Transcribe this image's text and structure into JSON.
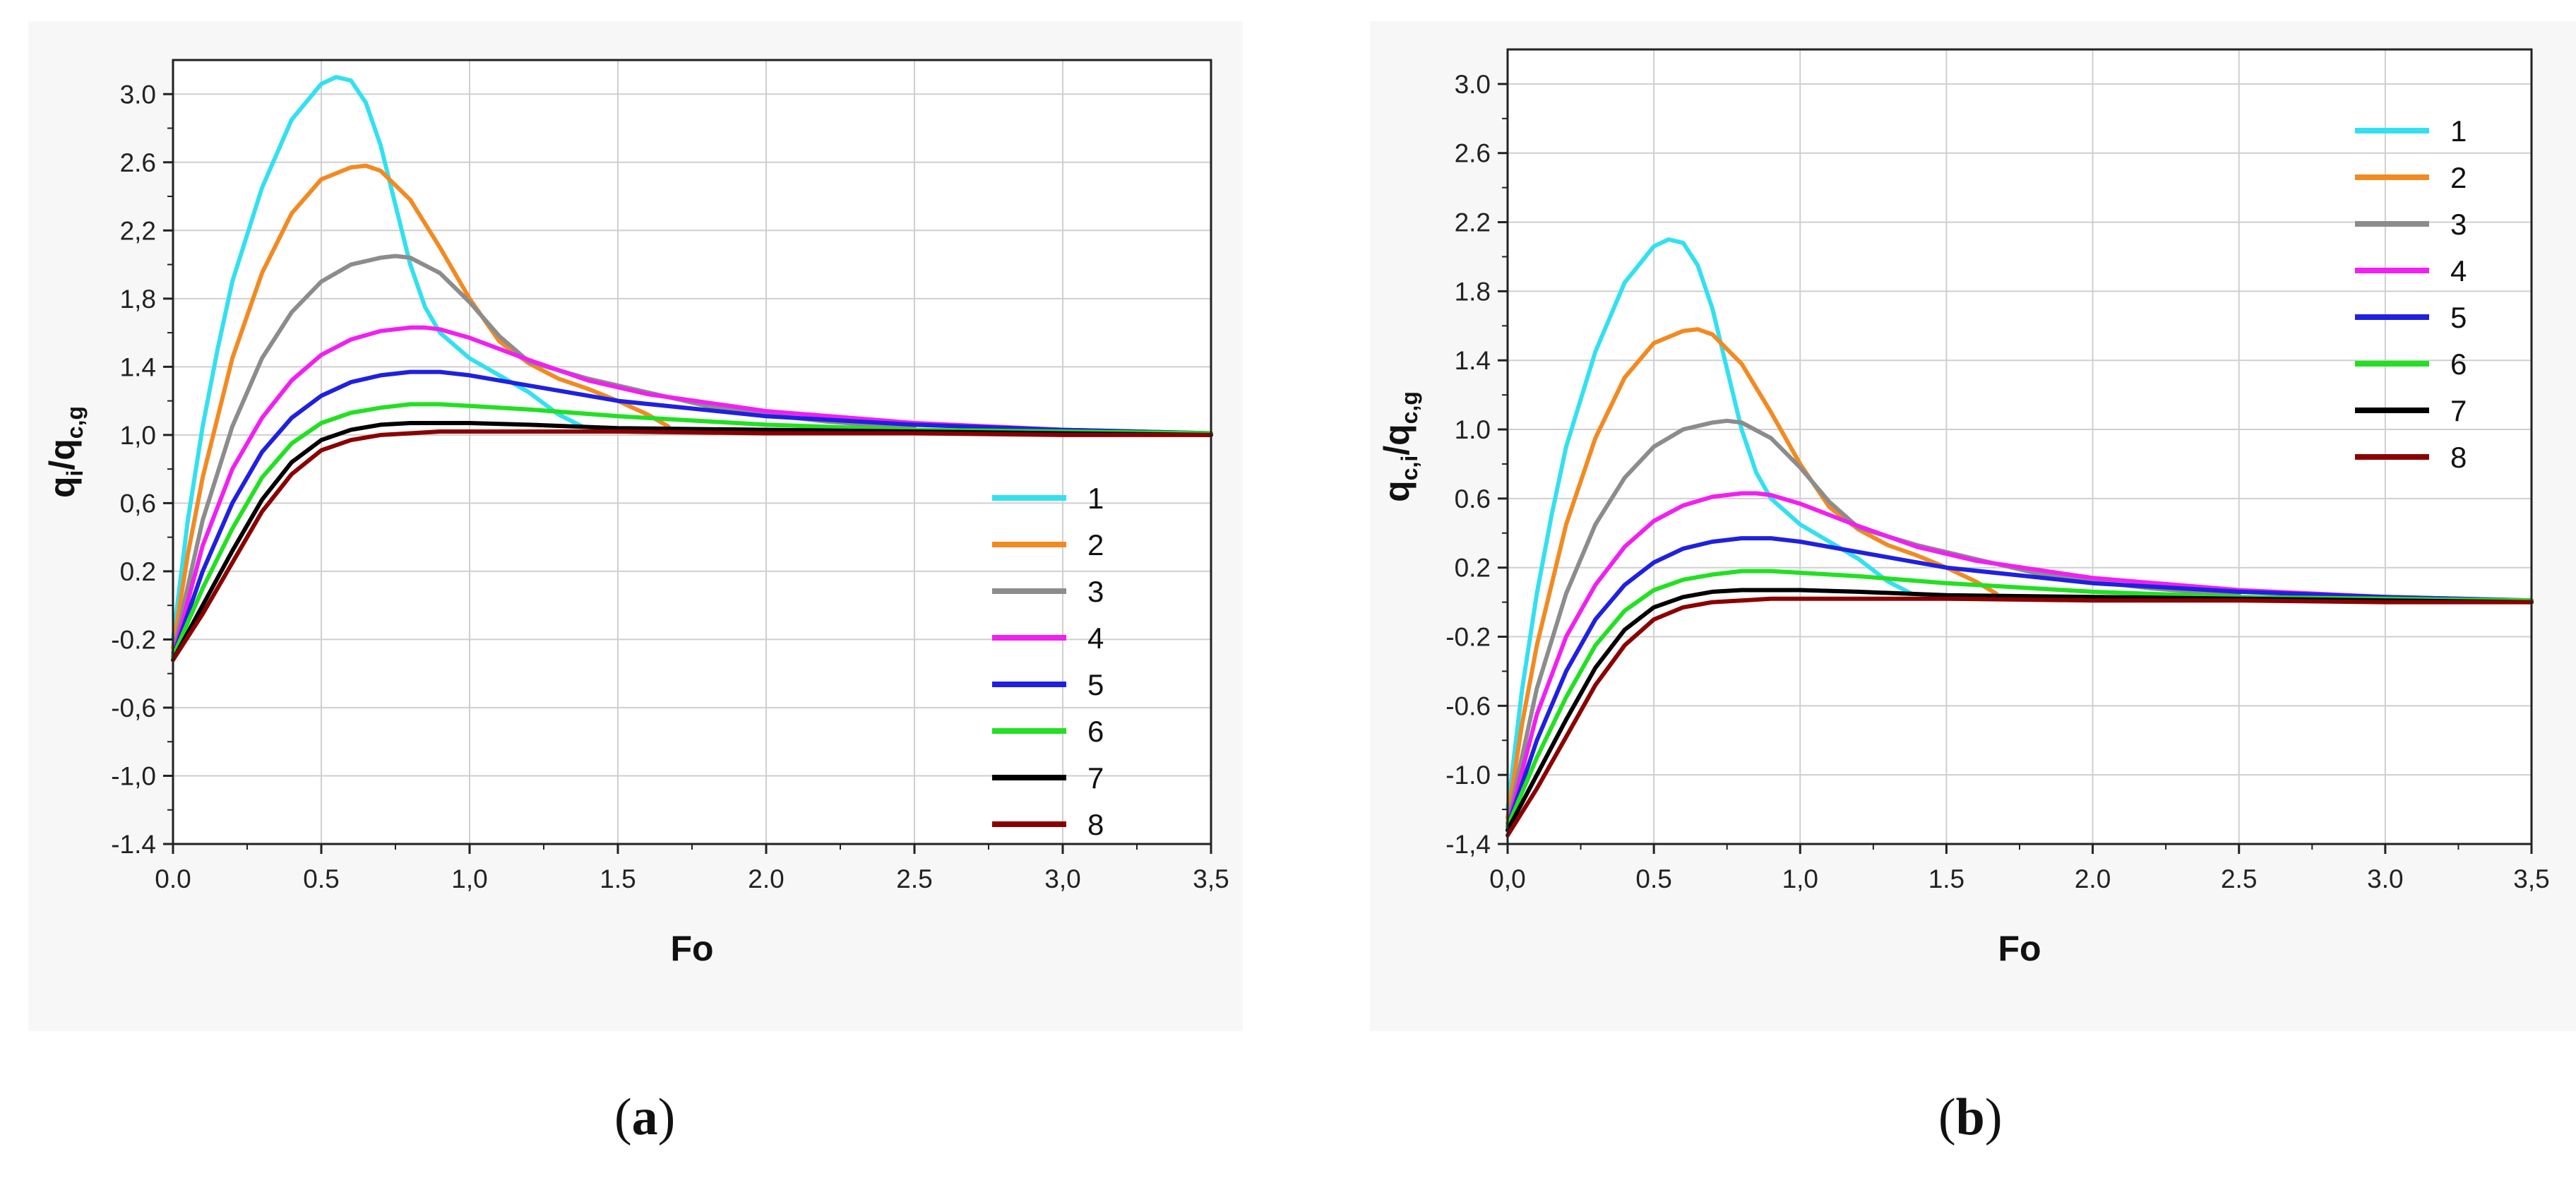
{
  "chart_data": [
    {
      "panel": "a",
      "type": "line",
      "xlabel": "Fo",
      "ylabel_main": "q",
      "ylabel_sub1": "i",
      "ylabel_sep": "/q",
      "ylabel_sub2": "c,g",
      "xlim": [
        0,
        3.5
      ],
      "ylim": [
        -1.4,
        3.2
      ],
      "xticks": [
        0,
        0.5,
        1,
        1.5,
        2,
        2.5,
        3,
        3.5
      ],
      "xtick_labels": [
        "0.0",
        "0.5",
        "1,0",
        "1.5",
        "2.0",
        "2.5",
        "3,0",
        "3,5"
      ],
      "yticks": [
        -1.4,
        -1.0,
        -0.6,
        -0.2,
        0.2,
        0.6,
        1.0,
        1.4,
        1.8,
        2.2,
        2.6,
        3.0
      ],
      "ytick_labels": [
        "-1.4",
        "-1,0",
        "-0,6",
        "-0.2",
        "0.2",
        "0,6",
        "1,0",
        "1.4",
        "1,8",
        "2,2",
        "2.6",
        "3.0"
      ],
      "grid": true,
      "legend_position": "bottom-right",
      "series": [
        {
          "name": "1",
          "color": "#33e0f0",
          "x": [
            0,
            0.05,
            0.1,
            0.15,
            0.2,
            0.3,
            0.4,
            0.5,
            0.55,
            0.6,
            0.65,
            0.7,
            0.75,
            0.8,
            0.85,
            0.9,
            1.0,
            1.1,
            1.2,
            1.3,
            1.38
          ],
          "y": [
            -0.2,
            0.5,
            1.05,
            1.5,
            1.9,
            2.45,
            2.85,
            3.06,
            3.1,
            3.08,
            2.95,
            2.7,
            2.35,
            2.0,
            1.75,
            1.6,
            1.45,
            1.35,
            1.25,
            1.12,
            1.05
          ]
        },
        {
          "name": "2",
          "color": "#f28a22",
          "x": [
            0,
            0.05,
            0.1,
            0.2,
            0.3,
            0.4,
            0.5,
            0.6,
            0.65,
            0.7,
            0.8,
            0.9,
            1.0,
            1.1,
            1.2,
            1.3,
            1.4,
            1.5,
            1.6,
            1.67
          ],
          "y": [
            -0.25,
            0.3,
            0.75,
            1.45,
            1.95,
            2.3,
            2.5,
            2.57,
            2.58,
            2.55,
            2.38,
            2.1,
            1.8,
            1.55,
            1.42,
            1.33,
            1.27,
            1.2,
            1.12,
            1.05
          ]
        },
        {
          "name": "3",
          "color": "#8c8c8c",
          "x": [
            0,
            0.1,
            0.2,
            0.3,
            0.4,
            0.5,
            0.6,
            0.7,
            0.75,
            0.8,
            0.9,
            1.0,
            1.1,
            1.2,
            1.4,
            1.6,
            1.8,
            2.0,
            2.2,
            2.5
          ],
          "y": [
            -0.28,
            0.5,
            1.05,
            1.45,
            1.72,
            1.9,
            2.0,
            2.04,
            2.05,
            2.04,
            1.95,
            1.78,
            1.58,
            1.43,
            1.33,
            1.25,
            1.17,
            1.12,
            1.08,
            1.04
          ]
        },
        {
          "name": "4",
          "color": "#f020f0",
          "x": [
            0,
            0.1,
            0.2,
            0.3,
            0.4,
            0.5,
            0.6,
            0.7,
            0.8,
            0.85,
            0.9,
            1.0,
            1.2,
            1.4,
            1.6,
            2.0,
            2.5,
            3.0,
            3.5
          ],
          "y": [
            -0.3,
            0.35,
            0.8,
            1.1,
            1.32,
            1.47,
            1.56,
            1.61,
            1.63,
            1.63,
            1.62,
            1.57,
            1.44,
            1.32,
            1.24,
            1.14,
            1.07,
            1.03,
            1.01
          ]
        },
        {
          "name": "5",
          "color": "#2020e0",
          "x": [
            0,
            0.1,
            0.2,
            0.3,
            0.4,
            0.5,
            0.6,
            0.7,
            0.8,
            0.9,
            1.0,
            1.2,
            1.5,
            2.0,
            2.5,
            3.0,
            3.5
          ],
          "y": [
            -0.3,
            0.2,
            0.6,
            0.9,
            1.1,
            1.23,
            1.31,
            1.35,
            1.37,
            1.37,
            1.35,
            1.29,
            1.2,
            1.11,
            1.06,
            1.03,
            1.01
          ]
        },
        {
          "name": "6",
          "color": "#22e022",
          "x": [
            0,
            0.1,
            0.2,
            0.3,
            0.4,
            0.5,
            0.6,
            0.7,
            0.8,
            0.9,
            1.0,
            1.2,
            1.5,
            2.0,
            2.5,
            3.0,
            3.5
          ],
          "y": [
            -0.3,
            0.1,
            0.45,
            0.75,
            0.95,
            1.07,
            1.13,
            1.16,
            1.18,
            1.18,
            1.17,
            1.15,
            1.11,
            1.06,
            1.03,
            1.02,
            1.01
          ]
        },
        {
          "name": "7",
          "color": "#000000",
          "x": [
            0,
            0.1,
            0.2,
            0.3,
            0.4,
            0.5,
            0.6,
            0.7,
            0.8,
            0.9,
            1.0,
            1.2,
            1.5,
            2.0,
            2.5,
            3.0,
            3.5
          ],
          "y": [
            -0.32,
            0.0,
            0.32,
            0.62,
            0.84,
            0.97,
            1.03,
            1.06,
            1.07,
            1.07,
            1.07,
            1.06,
            1.04,
            1.03,
            1.02,
            1.01,
            1.0
          ]
        },
        {
          "name": "8",
          "color": "#8b0000",
          "x": [
            0,
            0.1,
            0.2,
            0.3,
            0.4,
            0.5,
            0.6,
            0.7,
            0.8,
            0.9,
            1.0,
            1.2,
            1.5,
            2.0,
            2.5,
            3.0,
            3.5
          ],
          "y": [
            -0.32,
            -0.05,
            0.25,
            0.55,
            0.77,
            0.91,
            0.97,
            1.0,
            1.01,
            1.02,
            1.02,
            1.02,
            1.02,
            1.01,
            1.01,
            1.0,
            1.0
          ]
        }
      ]
    },
    {
      "panel": "b",
      "type": "line",
      "xlabel": "Fo",
      "ylabel_main": "q",
      "ylabel_sub1": "c,i",
      "ylabel_sep": "/q",
      "ylabel_sub2": "c,g",
      "xlim": [
        0,
        3.5
      ],
      "ylim": [
        -1.4,
        3.2
      ],
      "xticks": [
        0,
        0.5,
        1,
        1.5,
        2,
        2.5,
        3,
        3.5
      ],
      "xtick_labels": [
        "0,0",
        "0.5",
        "1,0",
        "1.5",
        "2.0",
        "2.5",
        "3.0",
        "3,5"
      ],
      "yticks": [
        -1.4,
        -1.0,
        -0.6,
        -0.2,
        0.2,
        0.6,
        1.0,
        1.4,
        1.8,
        2.2,
        2.6,
        3.0
      ],
      "ytick_labels": [
        "-1,4",
        "-1.0",
        "-0.6",
        "-0.2",
        "0.2",
        "0.6",
        "1.0",
        "1.4",
        "1.8",
        "2.2",
        "2.6",
        "3.0"
      ],
      "grid": true,
      "legend_position": "top-right",
      "series": [
        {
          "name": "1",
          "color": "#33e0f0",
          "x": [
            0,
            0.05,
            0.1,
            0.15,
            0.2,
            0.3,
            0.4,
            0.5,
            0.55,
            0.6,
            0.65,
            0.7,
            0.75,
            0.8,
            0.85,
            0.9,
            1.0,
            1.1,
            1.2,
            1.3,
            1.38
          ],
          "y": [
            -1.2,
            -0.5,
            0.05,
            0.5,
            0.9,
            1.45,
            1.85,
            2.06,
            2.1,
            2.08,
            1.95,
            1.7,
            1.35,
            1.0,
            0.75,
            0.6,
            0.45,
            0.35,
            0.25,
            0.12,
            0.05
          ]
        },
        {
          "name": "2",
          "color": "#f28a22",
          "x": [
            0,
            0.05,
            0.1,
            0.2,
            0.3,
            0.4,
            0.5,
            0.6,
            0.65,
            0.7,
            0.8,
            0.9,
            1.0,
            1.1,
            1.2,
            1.3,
            1.4,
            1.5,
            1.6,
            1.67
          ],
          "y": [
            -1.25,
            -0.7,
            -0.25,
            0.45,
            0.95,
            1.3,
            1.5,
            1.57,
            1.58,
            1.55,
            1.38,
            1.1,
            0.8,
            0.55,
            0.42,
            0.33,
            0.27,
            0.2,
            0.12,
            0.05
          ]
        },
        {
          "name": "3",
          "color": "#8c8c8c",
          "x": [
            0,
            0.1,
            0.2,
            0.3,
            0.4,
            0.5,
            0.6,
            0.7,
            0.75,
            0.8,
            0.9,
            1.0,
            1.1,
            1.2,
            1.4,
            1.6,
            1.8,
            2.0,
            2.2,
            2.5
          ],
          "y": [
            -1.28,
            -0.5,
            0.05,
            0.45,
            0.72,
            0.9,
            1.0,
            1.04,
            1.05,
            1.04,
            0.95,
            0.78,
            0.58,
            0.43,
            0.33,
            0.25,
            0.17,
            0.12,
            0.08,
            0.04
          ]
        },
        {
          "name": "4",
          "color": "#f020f0",
          "x": [
            0,
            0.1,
            0.2,
            0.3,
            0.4,
            0.5,
            0.6,
            0.7,
            0.8,
            0.85,
            0.9,
            1.0,
            1.2,
            1.4,
            1.6,
            2.0,
            2.5,
            3.0,
            3.5
          ],
          "y": [
            -1.3,
            -0.65,
            -0.2,
            0.1,
            0.32,
            0.47,
            0.56,
            0.61,
            0.63,
            0.63,
            0.62,
            0.57,
            0.44,
            0.32,
            0.24,
            0.14,
            0.07,
            0.03,
            0.01
          ]
        },
        {
          "name": "5",
          "color": "#2020e0",
          "x": [
            0,
            0.1,
            0.2,
            0.3,
            0.4,
            0.5,
            0.6,
            0.7,
            0.8,
            0.9,
            1.0,
            1.2,
            1.5,
            2.0,
            2.5,
            3.0,
            3.5
          ],
          "y": [
            -1.3,
            -0.8,
            -0.4,
            -0.1,
            0.1,
            0.23,
            0.31,
            0.35,
            0.37,
            0.37,
            0.35,
            0.29,
            0.2,
            0.11,
            0.06,
            0.03,
            0.01
          ]
        },
        {
          "name": "6",
          "color": "#22e022",
          "x": [
            0,
            0.1,
            0.2,
            0.3,
            0.4,
            0.5,
            0.6,
            0.7,
            0.8,
            0.9,
            1.0,
            1.2,
            1.5,
            2.0,
            2.5,
            3.0,
            3.5
          ],
          "y": [
            -1.3,
            -0.9,
            -0.55,
            -0.25,
            -0.05,
            0.07,
            0.13,
            0.16,
            0.18,
            0.18,
            0.17,
            0.15,
            0.11,
            0.06,
            0.03,
            0.02,
            0.01
          ]
        },
        {
          "name": "7",
          "color": "#000000",
          "x": [
            0,
            0.1,
            0.2,
            0.3,
            0.4,
            0.5,
            0.6,
            0.7,
            0.8,
            0.9,
            1.0,
            1.2,
            1.5,
            2.0,
            2.5,
            3.0,
            3.5
          ],
          "y": [
            -1.32,
            -1.0,
            -0.68,
            -0.38,
            -0.16,
            -0.03,
            0.03,
            0.06,
            0.07,
            0.07,
            0.07,
            0.06,
            0.04,
            0.03,
            0.02,
            0.01,
            0.0
          ]
        },
        {
          "name": "8",
          "color": "#8b0000",
          "x": [
            0,
            0.1,
            0.2,
            0.3,
            0.4,
            0.5,
            0.6,
            0.7,
            0.8,
            0.9,
            1.0,
            1.2,
            1.5,
            2.0,
            2.5,
            3.0,
            3.5
          ],
          "y": [
            -1.35,
            -1.08,
            -0.78,
            -0.48,
            -0.25,
            -0.1,
            -0.03,
            0.0,
            0.01,
            0.02,
            0.02,
            0.02,
            0.02,
            0.01,
            0.01,
            0.0,
            0.0
          ]
        }
      ]
    }
  ],
  "captions": {
    "a": {
      "open": "(",
      "letter": "a",
      "close": ")"
    },
    "b": {
      "open": "(",
      "letter": "b",
      "close": ")"
    }
  }
}
